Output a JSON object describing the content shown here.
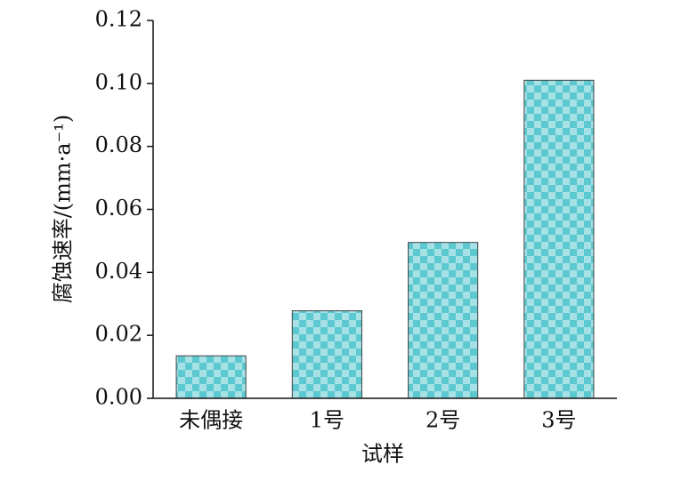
{
  "chart_data": {
    "type": "bar",
    "categories": [
      "未偶接",
      "1号",
      "2号",
      "3号"
    ],
    "values": [
      0.0135,
      0.0278,
      0.0495,
      0.101
    ],
    "color": "#5cc8d0",
    "xlabel": "试样",
    "ylabel": "腐蚀速率/(mm·a⁻¹)",
    "ylim": [
      0,
      0.12
    ],
    "yticks": [
      {
        "value": 0,
        "label": "0.00"
      },
      {
        "value": 0.02,
        "label": "0.02"
      },
      {
        "value": 0.04,
        "label": "0.04"
      },
      {
        "value": 0.06,
        "label": "0.06"
      },
      {
        "value": 0.08,
        "label": "0.08"
      },
      {
        "value": 0.1,
        "label": "0.10"
      },
      {
        "value": 0.12,
        "label": "0.12"
      }
    ]
  }
}
